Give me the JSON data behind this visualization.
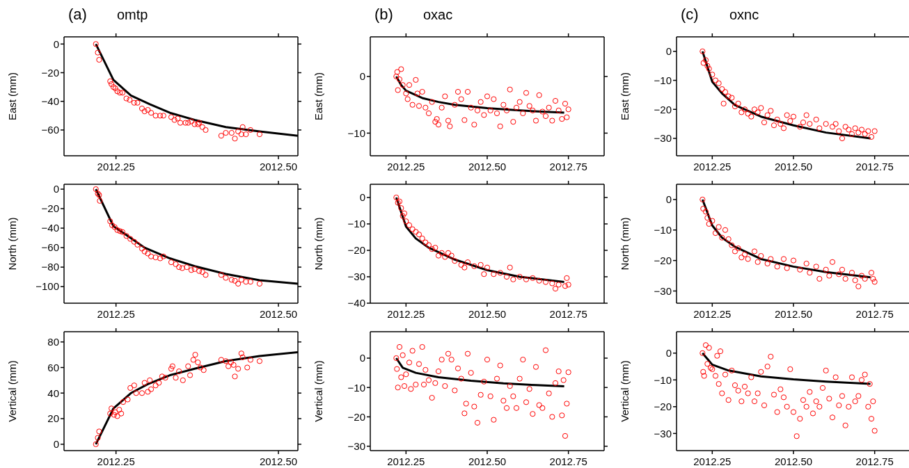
{
  "chart_data": [
    {
      "type": "scatter",
      "title": "omtp",
      "annotations": [
        "(a)"
      ],
      "ylabel": "East (mm)",
      "xlim": [
        2012.17,
        2012.53
      ],
      "xticks": [
        {
          "value": 2012.25,
          "label": "2012.25"
        },
        {
          "value": 2012.5,
          "label": "2012.50"
        }
      ],
      "ylim": [
        -78,
        5
      ],
      "yticks": [
        0,
        -20,
        -40,
        -60
      ],
      "series": [
        {
          "color": "#ff0000",
          "marker": "circle",
          "x": [
            2012.219,
            2012.222,
            2012.224,
            2012.241,
            2012.243,
            2012.246,
            2012.249,
            2012.252,
            2012.256,
            2012.26,
            2012.266,
            2012.271,
            2012.278,
            2012.283,
            2012.29,
            2012.294,
            2012.299,
            2012.304,
            2012.311,
            2012.318,
            2012.323,
            2012.335,
            2012.34,
            2012.345,
            2012.349,
            2012.357,
            2012.361,
            2012.366,
            2012.371,
            2012.376,
            2012.378,
            2012.383,
            2012.388,
            2012.412,
            2012.419,
            2012.428,
            2012.433,
            2012.438,
            2012.443,
            2012.445,
            2012.45,
            2012.457,
            2012.471
          ],
          "values": [
            0,
            -6,
            -11,
            -26,
            -28,
            -30,
            -31,
            -33,
            -34,
            -34,
            -38,
            -39,
            -41,
            -41,
            -45,
            -47,
            -46,
            -48,
            -50,
            -50,
            -50,
            -51,
            -53,
            -52,
            -55,
            -55,
            -55,
            -54,
            -56,
            -56,
            -55,
            -58,
            -60,
            -64,
            -62,
            -62,
            -66,
            -61,
            -63,
            -58,
            -63,
            -60,
            -63
          ]
        },
        {
          "type": "line",
          "color": "#000000",
          "x": [
            2012.219,
            2012.246,
            2012.273,
            2012.302,
            2012.333,
            2012.371,
            2012.419,
            2012.471,
            2012.53
          ],
          "values": [
            0,
            -25,
            -36,
            -42,
            -48,
            -53,
            -58,
            -61,
            -64
          ]
        }
      ]
    },
    {
      "type": "scatter",
      "title": "oxac",
      "annotations": [
        "(b)"
      ],
      "ylabel": "East (mm)",
      "xlim": [
        2012.14,
        2012.86
      ],
      "xticks": [
        {
          "value": 2012.25,
          "label": "2012.25"
        },
        {
          "value": 2012.5,
          "label": "2012.50"
        },
        {
          "value": 2012.75,
          "label": "2012.75"
        }
      ],
      "ylim": [
        -14,
        7
      ],
      "yticks": [
        0,
        -10
      ],
      "series": [
        {
          "color": "#ff0000",
          "marker": "circle",
          "x": [
            2012.22,
            2012.223,
            2012.225,
            2012.23,
            2012.235,
            2012.24,
            2012.25,
            2012.255,
            2012.26,
            2012.27,
            2012.28,
            2012.285,
            2012.29,
            2012.3,
            2012.31,
            2012.32,
            2012.33,
            2012.34,
            2012.345,
            2012.35,
            2012.36,
            2012.37,
            2012.38,
            2012.385,
            2012.4,
            2012.41,
            2012.42,
            2012.43,
            2012.44,
            2012.45,
            2012.46,
            2012.47,
            2012.48,
            2012.49,
            2012.5,
            2012.51,
            2012.52,
            2012.53,
            2012.54,
            2012.55,
            2012.56,
            2012.57,
            2012.58,
            2012.59,
            2012.6,
            2012.61,
            2012.62,
            2012.63,
            2012.64,
            2012.65,
            2012.66,
            2012.67,
            2012.68,
            2012.69,
            2012.7,
            2012.71,
            2012.72,
            2012.73,
            2012.74,
            2012.745,
            2012.75
          ],
          "values": [
            0,
            0.8,
            -2.4,
            -0.5,
            1.3,
            -1.5,
            -3,
            -4,
            -1.5,
            -5,
            -0.6,
            -3,
            -5.2,
            -2.7,
            -5.5,
            -6.5,
            -4.5,
            -8,
            -7.5,
            -8.5,
            -5.5,
            -3.5,
            -7.8,
            -8.8,
            -5,
            -2.7,
            -4,
            -7.7,
            -2.7,
            -5.5,
            -8.5,
            -6,
            -4.5,
            -6.8,
            -3.5,
            -6,
            -4,
            -6.5,
            -8.8,
            -5,
            -6,
            -2.3,
            -8,
            -5.5,
            -4.5,
            -6.5,
            -2.9,
            -5.2,
            -6,
            -7.8,
            -3.3,
            -6.2,
            -7,
            -5.5,
            -7.8,
            -4.3,
            -6,
            -7.5,
            -4.8,
            -7.2,
            -5.8
          ]
        },
        {
          "type": "line",
          "color": "#000000",
          "x": [
            2012.22,
            2012.235,
            2012.25,
            2012.3,
            2012.35,
            2012.4,
            2012.5,
            2012.6,
            2012.737
          ],
          "values": [
            0,
            -1.5,
            -2.5,
            -3.8,
            -4.5,
            -5,
            -5.6,
            -6,
            -6.4
          ]
        }
      ]
    },
    {
      "type": "scatter",
      "title": "oxnc",
      "annotations": [
        "(c)"
      ],
      "ylabel": "East (mm)",
      "xlim": [
        2012.14,
        2012.86
      ],
      "xticks": [
        {
          "value": 2012.25,
          "label": "2012.25"
        },
        {
          "value": 2012.5,
          "label": "2012.50"
        },
        {
          "value": 2012.75,
          "label": "2012.75"
        }
      ],
      "ylim": [
        -36,
        5
      ],
      "yticks": [
        0,
        -10,
        -20,
        -30
      ],
      "series": [
        {
          "color": "#ff0000",
          "marker": "circle",
          "x": [
            2012.22,
            2012.223,
            2012.23,
            2012.235,
            2012.24,
            2012.25,
            2012.26,
            2012.27,
            2012.28,
            2012.285,
            2012.29,
            2012.3,
            2012.31,
            2012.32,
            2012.33,
            2012.34,
            2012.35,
            2012.36,
            2012.37,
            2012.38,
            2012.39,
            2012.4,
            2012.41,
            2012.42,
            2012.43,
            2012.44,
            2012.45,
            2012.46,
            2012.47,
            2012.48,
            2012.49,
            2012.5,
            2012.52,
            2012.53,
            2012.54,
            2012.55,
            2012.57,
            2012.58,
            2012.6,
            2012.62,
            2012.63,
            2012.64,
            2012.65,
            2012.66,
            2012.67,
            2012.68,
            2012.69,
            2012.7,
            2012.71,
            2012.72,
            2012.73,
            2012.74,
            2012.75
          ],
          "values": [
            0,
            -4,
            -3,
            -5,
            -6,
            -8,
            -10,
            -11,
            -13,
            -18,
            -14,
            -15.5,
            -16,
            -19,
            -18,
            -21,
            -20,
            -21.5,
            -22.5,
            -20,
            -21,
            -19.5,
            -24.5,
            -22,
            -20.5,
            -25.5,
            -23.5,
            -25,
            -26.5,
            -22,
            -24,
            -22.5,
            -26,
            -24.5,
            -22,
            -25,
            -23.5,
            -26.5,
            -25,
            -26,
            -25,
            -27.5,
            -30,
            -26,
            -27,
            -28.5,
            -26.5,
            -28,
            -27,
            -28.5,
            -27.5,
            -29.5,
            -27.5
          ]
        },
        {
          "type": "line",
          "color": "#000000",
          "x": [
            2012.22,
            2012.25,
            2012.28,
            2012.32,
            2012.4,
            2012.5,
            2012.6,
            2012.737
          ],
          "values": [
            0,
            -10.5,
            -14.5,
            -18.5,
            -22.5,
            -25.5,
            -28,
            -30
          ]
        }
      ]
    },
    {
      "type": "scatter",
      "ylabel": "North (mm)",
      "xlim": [
        2012.17,
        2012.53
      ],
      "xticks": [
        {
          "value": 2012.25,
          "label": "2012.25"
        },
        {
          "value": 2012.5,
          "label": "2012.50"
        }
      ],
      "ylim": [
        -117,
        5
      ],
      "yticks": [
        0,
        -20,
        -40,
        -60,
        -80,
        -100
      ],
      "series": [
        {
          "color": "#ff0000",
          "marker": "circle",
          "x": [
            2012.219,
            2012.222,
            2012.224,
            2012.225,
            2012.241,
            2012.244,
            2012.248,
            2012.252,
            2012.256,
            2012.26,
            2012.266,
            2012.272,
            2012.278,
            2012.283,
            2012.29,
            2012.294,
            2012.299,
            2012.304,
            2012.311,
            2012.318,
            2012.323,
            2012.335,
            2012.342,
            2012.347,
            2012.352,
            2012.359,
            2012.366,
            2012.371,
            2012.378,
            2012.383,
            2012.388,
            2012.412,
            2012.419,
            2012.428,
            2012.433,
            2012.438,
            2012.443,
            2012.45,
            2012.457,
            2012.471
          ],
          "values": [
            0,
            -4.5,
            -6,
            -12,
            -33,
            -37,
            -39,
            -42,
            -43,
            -44,
            -48,
            -51,
            -54,
            -57,
            -61,
            -64,
            -66,
            -69,
            -70,
            -71,
            -69,
            -75,
            -77,
            -80,
            -81,
            -80,
            -83,
            -82,
            -84,
            -85,
            -88,
            -88,
            -91,
            -93,
            -94,
            -97,
            -93,
            -95,
            -95,
            -97
          ]
        },
        {
          "type": "line",
          "color": "#000000",
          "x": [
            2012.219,
            2012.246,
            2012.266,
            2012.294,
            2012.333,
            2012.371,
            2012.419,
            2012.471,
            2012.53
          ],
          "values": [
            0,
            -38,
            -47,
            -60,
            -71,
            -79,
            -87,
            -93.5,
            -97
          ]
        }
      ]
    },
    {
      "type": "scatter",
      "ylabel": "North (mm)",
      "xlim": [
        2012.14,
        2012.86
      ],
      "xticks": [
        {
          "value": 2012.25,
          "label": "2012.25"
        },
        {
          "value": 2012.5,
          "label": "2012.50"
        },
        {
          "value": 2012.75,
          "label": "2012.75"
        }
      ],
      "ylim": [
        -40,
        5
      ],
      "yticks": [
        0,
        -10,
        -20,
        -30,
        -40
      ],
      "series": [
        {
          "color": "#ff0000",
          "marker": "circle",
          "x": [
            2012.22,
            2012.225,
            2012.23,
            2012.235,
            2012.24,
            2012.245,
            2012.25,
            2012.26,
            2012.27,
            2012.28,
            2012.29,
            2012.3,
            2012.31,
            2012.32,
            2012.33,
            2012.34,
            2012.35,
            2012.36,
            2012.37,
            2012.38,
            2012.39,
            2012.4,
            2012.42,
            2012.43,
            2012.44,
            2012.46,
            2012.48,
            2012.49,
            2012.5,
            2012.52,
            2012.54,
            2012.56,
            2012.57,
            2012.58,
            2012.6,
            2012.62,
            2012.64,
            2012.66,
            2012.68,
            2012.7,
            2012.71,
            2012.72,
            2012.74,
            2012.745,
            2012.75
          ],
          "values": [
            0,
            -2,
            -1.5,
            -4,
            -7,
            -6,
            -9,
            -10.5,
            -12,
            -13,
            -14,
            -15.5,
            -17,
            -18,
            -19.5,
            -19,
            -22,
            -21,
            -22.5,
            -21,
            -22,
            -24,
            -25.5,
            -26.5,
            -24.5,
            -26,
            -25.5,
            -29,
            -26.5,
            -29,
            -28.5,
            -30,
            -26.5,
            -31,
            -30,
            -31,
            -30.5,
            -31.5,
            -32,
            -32.5,
            -34.5,
            -33,
            -33.5,
            -30.5,
            -33
          ]
        },
        {
          "type": "line",
          "color": "#000000",
          "x": [
            2012.22,
            2012.25,
            2012.28,
            2012.32,
            2012.4,
            2012.5,
            2012.6,
            2012.737
          ],
          "values": [
            0,
            -11,
            -15.5,
            -19,
            -23.5,
            -27.5,
            -30,
            -32
          ]
        }
      ]
    },
    {
      "type": "scatter",
      "ylabel": "North (mm)",
      "xlim": [
        2012.14,
        2012.86
      ],
      "xticks": [
        {
          "value": 2012.25,
          "label": "2012.25"
        },
        {
          "value": 2012.5,
          "label": "2012.50"
        },
        {
          "value": 2012.75,
          "label": "2012.75"
        }
      ],
      "ylim": [
        -34,
        5
      ],
      "yticks": [
        0,
        -10,
        -20,
        -30
      ],
      "series": [
        {
          "color": "#ff0000",
          "marker": "circle",
          "x": [
            2012.22,
            2012.222,
            2012.23,
            2012.235,
            2012.24,
            2012.25,
            2012.26,
            2012.27,
            2012.28,
            2012.29,
            2012.3,
            2012.31,
            2012.32,
            2012.33,
            2012.34,
            2012.35,
            2012.36,
            2012.38,
            2012.39,
            2012.4,
            2012.42,
            2012.43,
            2012.45,
            2012.47,
            2012.48,
            2012.5,
            2012.52,
            2012.54,
            2012.55,
            2012.57,
            2012.58,
            2012.6,
            2012.61,
            2012.62,
            2012.64,
            2012.65,
            2012.66,
            2012.68,
            2012.69,
            2012.7,
            2012.71,
            2012.72,
            2012.74,
            2012.745,
            2012.75
          ],
          "values": [
            0,
            -3,
            -4,
            -6,
            -8,
            -7,
            -11,
            -9,
            -12.5,
            -10,
            -13,
            -15,
            -17,
            -16,
            -19,
            -18,
            -19.5,
            -17,
            -20.5,
            -18.5,
            -21,
            -19.5,
            -22,
            -19.5,
            -22.5,
            -20,
            -23,
            -21,
            -24,
            -22,
            -26,
            -23,
            -25,
            -20.5,
            -24.5,
            -23,
            -26,
            -24,
            -26.5,
            -28.5,
            -25,
            -26,
            -24,
            -26,
            -27
          ]
        },
        {
          "type": "line",
          "color": "#000000",
          "x": [
            2012.22,
            2012.25,
            2012.28,
            2012.32,
            2012.4,
            2012.5,
            2012.6,
            2012.737
          ],
          "values": [
            0,
            -8.5,
            -12.5,
            -15.5,
            -19.5,
            -22,
            -23.8,
            -25.5
          ]
        }
      ]
    },
    {
      "type": "scatter",
      "ylabel": "Vertical (mm)",
      "xlim": [
        2012.17,
        2012.53
      ],
      "xticks": [
        {
          "value": 2012.25,
          "label": "2012.25"
        },
        {
          "value": 2012.5,
          "label": "2012.50"
        }
      ],
      "ylim": [
        -5,
        88
      ],
      "yticks": [
        0,
        20,
        40,
        60,
        80
      ],
      "series": [
        {
          "color": "#ff0000",
          "marker": "circle",
          "x": [
            2012.219,
            2012.222,
            2012.224,
            2012.241,
            2012.243,
            2012.247,
            2012.249,
            2012.252,
            2012.255,
            2012.258,
            2012.261,
            2012.268,
            2012.272,
            2012.278,
            2012.281,
            2012.29,
            2012.294,
            2012.299,
            2012.302,
            2012.304,
            2012.311,
            2012.316,
            2012.321,
            2012.326,
            2012.335,
            2012.337,
            2012.342,
            2012.347,
            2012.353,
            2012.361,
            2012.364,
            2012.369,
            2012.372,
            2012.376,
            2012.38,
            2012.385,
            2012.412,
            2012.419,
            2012.423,
            2012.427,
            2012.431,
            2012.433,
            2012.438,
            2012.443,
            2012.445,
            2012.452,
            2012.457,
            2012.471
          ],
          "values": [
            0,
            5,
            10,
            24,
            28,
            23,
            25,
            22,
            27,
            24,
            33,
            35,
            44,
            46,
            40,
            40,
            48,
            41,
            50,
            43,
            46,
            48,
            53,
            52,
            59,
            61,
            52,
            57,
            50,
            61,
            54,
            66,
            70,
            64,
            60,
            58,
            66,
            65,
            61,
            64,
            62,
            53,
            59,
            71,
            68,
            60,
            66,
            65
          ]
        },
        {
          "type": "line",
          "color": "#000000",
          "x": [
            2012.219,
            2012.246,
            2012.273,
            2012.299,
            2012.333,
            2012.371,
            2012.419,
            2012.471,
            2012.53
          ],
          "values": [
            0,
            28,
            40,
            47,
            54,
            59,
            65,
            69,
            72
          ]
        }
      ]
    },
    {
      "type": "scatter",
      "ylabel": "Vertical (mm)",
      "xlim": [
        2012.14,
        2012.86
      ],
      "xticks": [
        {
          "value": 2012.25,
          "label": "2012.25"
        },
        {
          "value": 2012.5,
          "label": "2012.50"
        },
        {
          "value": 2012.75,
          "label": "2012.75"
        }
      ],
      "ylim": [
        -31.5,
        9
      ],
      "yticks": [
        0,
        -10,
        -20,
        -30
      ],
      "series": [
        {
          "color": "#ff0000",
          "marker": "circle",
          "x": [
            2012.22,
            2012.222,
            2012.225,
            2012.23,
            2012.235,
            2012.24,
            2012.245,
            2012.25,
            2012.26,
            2012.265,
            2012.27,
            2012.28,
            2012.29,
            2012.3,
            2012.305,
            2012.31,
            2012.32,
            2012.33,
            2012.34,
            2012.35,
            2012.36,
            2012.37,
            2012.38,
            2012.39,
            2012.4,
            2012.41,
            2012.42,
            2012.43,
            2012.435,
            2012.44,
            2012.45,
            2012.46,
            2012.47,
            2012.48,
            2012.49,
            2012.5,
            2012.51,
            2012.52,
            2012.53,
            2012.54,
            2012.55,
            2012.56,
            2012.57,
            2012.58,
            2012.59,
            2012.6,
            2012.61,
            2012.62,
            2012.63,
            2012.64,
            2012.65,
            2012.66,
            2012.67,
            2012.68,
            2012.69,
            2012.7,
            2012.71,
            2012.72,
            2012.73,
            2012.735,
            2012.74,
            2012.745,
            2012.75
          ],
          "values": [
            0,
            -3.7,
            -10,
            3.8,
            -6.5,
            1,
            -9.5,
            -5.5,
            -1.5,
            -10.5,
            2.5,
            -9,
            -2,
            3.8,
            -9,
            -4,
            -7.5,
            -13.5,
            -8.5,
            -4.5,
            -0.5,
            -9.5,
            1.5,
            -0.5,
            -11,
            -3.5,
            -7,
            -18.8,
            -15.5,
            1.5,
            -5,
            -16.5,
            -22,
            -12.5,
            -8,
            -0.5,
            -13,
            -21,
            -7,
            -2.5,
            -14.5,
            -17,
            -9.5,
            -13,
            -17,
            -7,
            -0.5,
            -15,
            -10.5,
            -19,
            -3,
            -16,
            -17,
            2.7,
            -12,
            -20,
            -8.5,
            -4.5,
            -19.5,
            -7.5,
            -26.5,
            -15.5,
            -4.8
          ]
        },
        {
          "type": "line",
          "color": "#000000",
          "x": [
            2012.22,
            2012.24,
            2012.28,
            2012.35,
            2012.45,
            2012.55,
            2012.65,
            2012.737
          ],
          "values": [
            0,
            -3.3,
            -5,
            -6.5,
            -7.7,
            -8.6,
            -9.2,
            -9.6
          ]
        }
      ]
    },
    {
      "type": "scatter",
      "ylabel": "Vertical (mm)",
      "xlim": [
        2012.14,
        2012.86
      ],
      "xticks": [
        {
          "value": 2012.25,
          "label": "2012.25"
        },
        {
          "value": 2012.5,
          "label": "2012.50"
        },
        {
          "value": 2012.75,
          "label": "2012.75"
        }
      ],
      "ylim": [
        -36.4,
        8
      ],
      "yticks": [
        0,
        -10,
        -20,
        -30
      ],
      "series": [
        {
          "color": "#ff0000",
          "marker": "circle",
          "x": [
            2012.22,
            2012.222,
            2012.225,
            2012.23,
            2012.235,
            2012.24,
            2012.245,
            2012.25,
            2012.26,
            2012.265,
            2012.27,
            2012.275,
            2012.28,
            2012.29,
            2012.3,
            2012.31,
            2012.32,
            2012.33,
            2012.34,
            2012.35,
            2012.36,
            2012.37,
            2012.38,
            2012.39,
            2012.4,
            2012.41,
            2012.42,
            2012.43,
            2012.44,
            2012.45,
            2012.46,
            2012.47,
            2012.48,
            2012.49,
            2012.5,
            2012.51,
            2012.52,
            2012.53,
            2012.54,
            2012.55,
            2012.56,
            2012.57,
            2012.58,
            2012.59,
            2012.6,
            2012.61,
            2012.62,
            2012.63,
            2012.64,
            2012.65,
            2012.66,
            2012.67,
            2012.68,
            2012.69,
            2012.7,
            2012.71,
            2012.72,
            2012.73,
            2012.735,
            2012.74,
            2012.745,
            2012.75
          ],
          "values": [
            0,
            -7,
            -8.5,
            3,
            -4,
            2,
            -5.5,
            -6,
            -8.5,
            -1,
            -11.5,
            0.7,
            -15,
            -8,
            -17.5,
            -6.5,
            -12,
            -14,
            -18,
            -12.5,
            -15,
            -9,
            -18,
            -15,
            -7,
            -19.5,
            -5,
            -1.3,
            -15.5,
            -22,
            -13.5,
            -16.5,
            -20,
            -6,
            -22,
            -31,
            -24.5,
            -17.5,
            -20,
            -14.5,
            -22.5,
            -18,
            -20,
            -13,
            -6.5,
            -17,
            -24,
            -9,
            -19.5,
            -16,
            -27,
            -20,
            -9,
            -18,
            -16,
            -10,
            -8,
            -20,
            -11.5,
            -24.5,
            -18,
            -29
          ]
        },
        {
          "type": "line",
          "color": "#000000",
          "x": [
            2012.22,
            2012.25,
            2012.3,
            2012.4,
            2012.5,
            2012.6,
            2012.737
          ],
          "values": [
            0,
            -4.3,
            -6.5,
            -8.7,
            -9.8,
            -10.6,
            -11.5
          ]
        }
      ]
    }
  ]
}
